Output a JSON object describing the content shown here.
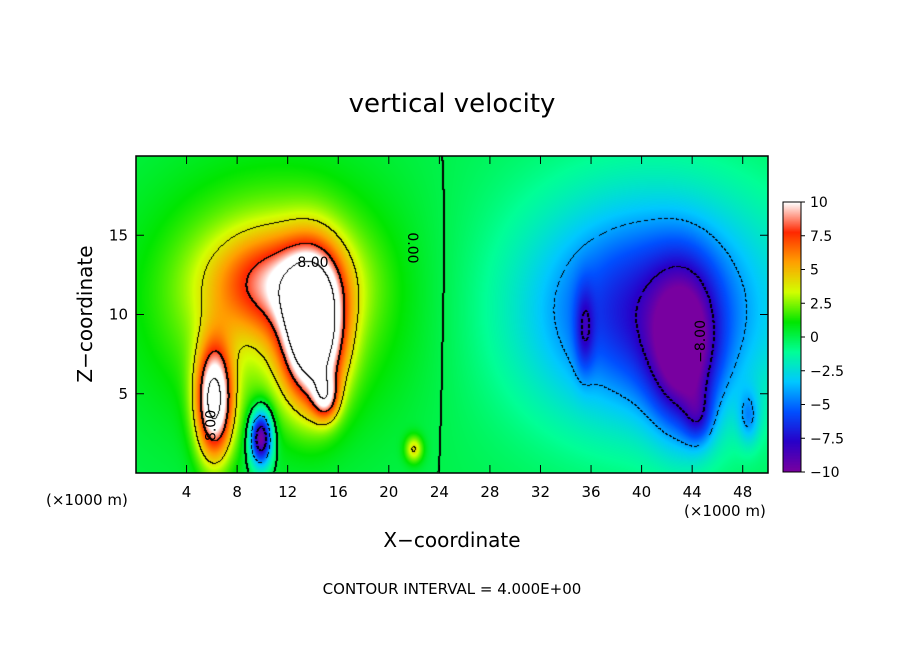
{
  "chart_data": {
    "type": "heatmap",
    "title": "vertical velocity",
    "xlabel": "X−coordinate",
    "ylabel": "Z−coordinate",
    "x_unit_left": "(×1000 m)",
    "x_unit_right": "(×1000 m)",
    "footer": "CONTOUR INTERVAL = 4.000E+00",
    "xlim": [
      0,
      50
    ],
    "ylim": [
      0,
      20
    ],
    "x_ticks": [
      4,
      8,
      12,
      16,
      20,
      24,
      28,
      32,
      36,
      40,
      44,
      48
    ],
    "x_tick_labels": [
      "4",
      "8",
      "12",
      "16",
      "20",
      "24",
      "28",
      "32",
      "36",
      "40",
      "44",
      "48"
    ],
    "y_ticks": [
      5,
      10,
      15
    ],
    "y_tick_labels": [
      "5",
      "10",
      "15"
    ],
    "colorbar": {
      "min": -10,
      "max": 10,
      "ticks": [
        10,
        7.5,
        5,
        2.5,
        0,
        -2.5,
        -5,
        -7.5,
        -10
      ],
      "tick_labels": [
        "10",
        "7.5",
        "5",
        "2.5",
        "0",
        "−2.5",
        "−5",
        "−7.5",
        "−10"
      ],
      "colors": [
        "#7800a0",
        "#2800c8",
        "#0050ff",
        "#00c8ff",
        "#00ff96",
        "#00e600",
        "#d2ff00",
        "#ffa000",
        "#ff2800",
        "#ffffff"
      ]
    },
    "contour_labels": [
      {
        "text": "8.00",
        "x": 14,
        "y": 13.0,
        "rotate": 0
      },
      {
        "text": "8.00",
        "x": 6.3,
        "y": 3.0,
        "rotate": -90
      },
      {
        "text": "0.00",
        "x": 21.5,
        "y": 14.2,
        "rotate": 90
      },
      {
        "text": "−8.00",
        "x": 45.0,
        "y": 8.3,
        "rotate": -90
      }
    ],
    "features": [
      {
        "x": 14,
        "z": 9,
        "sx": 1.6,
        "sz": 3.0,
        "w": 15
      },
      {
        "x": 6.2,
        "z": 4.5,
        "sx": 1.0,
        "sz": 2.5,
        "w": 12
      },
      {
        "x": 11.2,
        "z": 12,
        "sx": 3.5,
        "sz": 2.2,
        "w": 6
      },
      {
        "x": 15,
        "z": 4.8,
        "sx": 0.7,
        "sz": 1.0,
        "w": 6
      },
      {
        "x": 9.9,
        "z": 2.2,
        "sx": 0.6,
        "sz": 1.2,
        "w": -11
      },
      {
        "x": 11,
        "z": 11,
        "sx": 7,
        "sz": 5.5,
        "w": 3.5
      },
      {
        "x": 43.3,
        "z": 7.5,
        "sx": 1.8,
        "sz": 3.5,
        "w": -7
      },
      {
        "x": 40.5,
        "z": 10,
        "sx": 6,
        "sz": 4.5,
        "w": -5
      },
      {
        "x": 41,
        "z": 11,
        "sx": 9,
        "sz": 6,
        "w": -2.5
      },
      {
        "x": 44.5,
        "z": 3.5,
        "sx": 0.8,
        "sz": 1.3,
        "w": -3
      },
      {
        "x": 48.5,
        "z": 3.5,
        "sx": 0.6,
        "sz": 1.2,
        "w": -3
      },
      {
        "x": 35.5,
        "z": 9,
        "sx": 0.5,
        "sz": 1.8,
        "w": -3
      },
      {
        "x": 22,
        "z": 1.5,
        "sx": 0.5,
        "sz": 0.6,
        "w": 4
      }
    ]
  }
}
